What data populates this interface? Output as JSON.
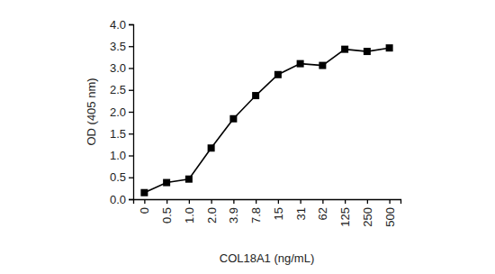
{
  "chart_data": {
    "type": "line",
    "x_label": "COL18A1 (ng/mL)",
    "y_label": "OD (405 nm)",
    "categories": [
      "0",
      "0.5",
      "1.0",
      "2.0",
      "3.9",
      "7.8",
      "15",
      "31",
      "62",
      "125",
      "250",
      "500"
    ],
    "values": [
      0.15,
      0.38,
      0.46,
      1.17,
      1.84,
      2.37,
      2.85,
      3.1,
      3.06,
      3.43,
      3.38,
      3.46
    ],
    "color": "#000000",
    "marker": "square",
    "ylim": [
      0,
      4
    ],
    "yticks": [
      {
        "value": 0,
        "label": "0.0"
      },
      0.5,
      {
        "value": 1,
        "label": "1.0"
      },
      1.5,
      {
        "value": 2,
        "label": "2.0"
      },
      2.5,
      {
        "value": 3,
        "label": "3.0"
      },
      3.5,
      {
        "value": 4,
        "label": "4.0"
      }
    ],
    "grid": false
  }
}
